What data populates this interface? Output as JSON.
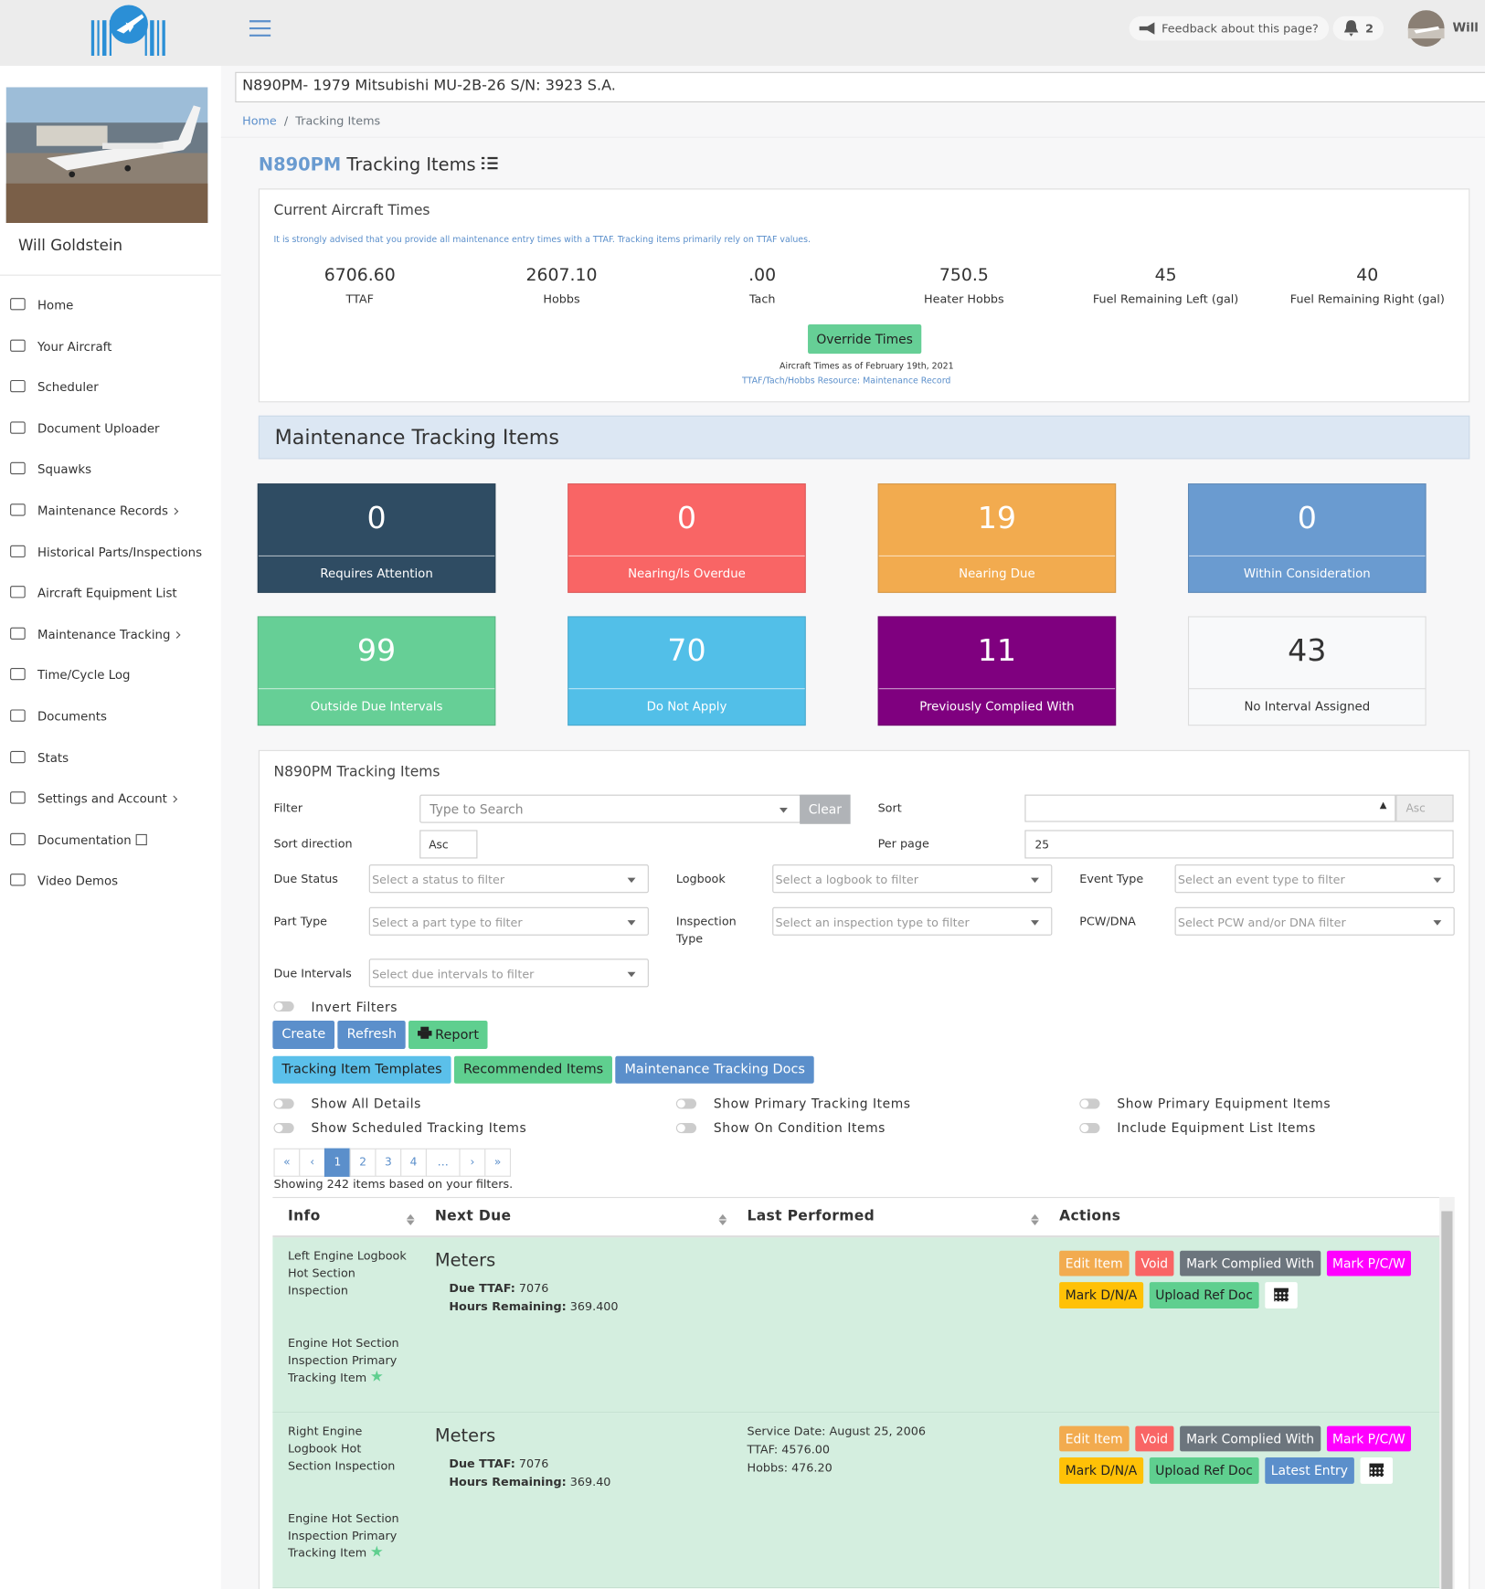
{
  "header": {
    "feedback": "Feedback about this page?",
    "notifications": "2",
    "user": "Will"
  },
  "aircraft_title": "N890PM- 1979 Mitsubishi MU-2B-26 S/N: 3923 S.A.",
  "breadcrumb": [
    "Home",
    "Tracking Items"
  ],
  "sidebar": {
    "user_name": "Will Goldstein",
    "menu": [
      "Home",
      "Your Aircraft",
      "Scheduler",
      "Document Uploader",
      "Squawks",
      "Maintenance Records",
      "Historical Parts/Inspections",
      "Aircraft Equipment List",
      "Maintenance Tracking",
      "Time/Cycle Log",
      "Documents",
      "Stats",
      "Settings and Account",
      "Documentation",
      "Video Demos"
    ]
  },
  "page_title": {
    "tail": "N890PM",
    "text": "Tracking Items"
  },
  "aircraft_times": {
    "title": "Current Aircraft Times",
    "advice": "It is strongly advised that you provide all maintenance entry times with a TTAF. Tracking items primarily rely on TTAF values.",
    "times": [
      {
        "value": "6706.60",
        "label": "TTAF"
      },
      {
        "value": "2607.10",
        "label": "Hobbs"
      },
      {
        "value": ".00",
        "label": "Tach"
      },
      {
        "value": "750.5",
        "label": "Heater Hobbs"
      },
      {
        "value": "45",
        "label": "Fuel Remaining Left (gal)"
      },
      {
        "value": "40",
        "label": "Fuel Remaining Right (gal)"
      }
    ],
    "button": "Override Times",
    "as_of": "Aircraft Times as of February 19th, 2021",
    "resource": "TTAF/Tach/Hobbs Resource: Maintenance Record"
  },
  "maintenance": {
    "title": "Maintenance Tracking Items",
    "cards": [
      {
        "count": 0,
        "label": "Requires Attention",
        "color": "#2f4c63"
      },
      {
        "count": 0,
        "label": "Nearing/Is Overdue",
        "color": "#f96565"
      },
      {
        "count": 19,
        "label": "Nearing Due",
        "color": "#f2ab4f"
      },
      {
        "count": 0,
        "label": "Within Consideration",
        "color": "#6a9bd0"
      },
      {
        "count": 99,
        "label": "Outside Due Intervals",
        "color": "#66cf96"
      },
      {
        "count": 70,
        "label": "Do Not Apply",
        "color": "#52bfe8"
      },
      {
        "count": 11,
        "label": "Previously Complied With",
        "color": "#7f007f"
      },
      {
        "count": 43,
        "label": "No Interval Assigned",
        "color": "#f8f9fa"
      }
    ]
  },
  "tracking": {
    "title": "N890PM Tracking Items",
    "filter_label": "Filter",
    "filter_placeholder": "Type to Search",
    "clear": "Clear",
    "sort_label": "Sort",
    "sort_order": "Asc",
    "sort_direction_label": "Sort direction",
    "sort_direction": "Asc",
    "per_page_label": "Per page",
    "per_page": "25",
    "selects": [
      {
        "label": "Due Status",
        "placeholder": "Select a status to filter"
      },
      {
        "label": "Logbook",
        "placeholder": "Select a logbook to filter"
      },
      {
        "label": "Event Type",
        "placeholder": "Select an event type to filter"
      },
      {
        "label": "Part Type",
        "placeholder": "Select a part type to filter"
      },
      {
        "label": "Inspection Type",
        "placeholder": "Select an inspection type to filter"
      },
      {
        "label": "PCW/DNA",
        "placeholder": "Select PCW and/or DNA filter"
      },
      {
        "label": "Due Intervals",
        "placeholder": "Select due intervals to filter"
      }
    ],
    "invert": "Invert Filters",
    "buttons": [
      {
        "text": "Create",
        "color": "#5b8fcb"
      },
      {
        "text": "Refresh",
        "color": "#5b8fcb"
      },
      {
        "text": "Report",
        "color": "#5fcf8f"
      }
    ],
    "links": [
      {
        "text": "Tracking Item Templates",
        "color": "#5bc0ea"
      },
      {
        "text": "Recommended Items",
        "color": "#5fcf8f"
      },
      {
        "text": "Maintenance Tracking Docs",
        "color": "#5b8fcb"
      }
    ],
    "toggles": [
      "Show All Details",
      "Show Scheduled Tracking Items",
      "Show Primary Tracking Items",
      "Show On Condition Items",
      "Show Primary Equipment Items",
      "Include Equipment List Items"
    ],
    "pagination": [
      "«",
      "‹",
      "1",
      "2",
      "3",
      "4",
      "…",
      "›",
      "»"
    ],
    "showing": "Showing 242 items based on your filters.",
    "columns": [
      "Info",
      "Next Due",
      "Last Performed",
      "Actions"
    ],
    "rows": [
      {
        "info": [
          "Left Engine Logbook Hot Section Inspection",
          "Engine Hot Section Inspection Primary Tracking Item"
        ],
        "next_due": {
          "title": "Meters",
          "due_ttaf_label": "Due TTAF:",
          "due_ttaf": "7076",
          "hours_label": "Hours Remaining:",
          "hours": "369.400"
        },
        "last_performed": [],
        "actions": [
          {
            "text": "Edit Item",
            "color": "#f2ab4f"
          },
          {
            "text": "Void",
            "color": "#f96565"
          },
          {
            "text": "Mark Complied With",
            "color": "#6c757d"
          },
          {
            "text": "Mark P/C/W",
            "color": "#ff00ff"
          },
          {
            "text": "Mark D/N/A",
            "color": "#ffc107"
          },
          {
            "text": "Upload Ref Doc",
            "color": "#5fcf8f"
          }
        ]
      },
      {
        "info": [
          "Right Engine Logbook Hot Section Inspection",
          "Engine Hot Section Inspection Primary Tracking Item"
        ],
        "next_due": {
          "title": "Meters",
          "due_ttaf_label": "Due TTAF:",
          "due_ttaf": "7076",
          "hours_label": "Hours Remaining:",
          "hours": "369.40"
        },
        "last_performed": [
          "Service Date: August 25, 2006",
          "TTAF: 4576.00",
          "Hobbs: 476.20"
        ],
        "actions": [
          {
            "text": "Edit Item",
            "color": "#f2ab4f"
          },
          {
            "text": "Void",
            "color": "#f96565"
          },
          {
            "text": "Mark Complied With",
            "color": "#6c757d"
          },
          {
            "text": "Mark P/C/W",
            "color": "#ff00ff"
          },
          {
            "text": "Mark D/N/A",
            "color": "#ffc107"
          },
          {
            "text": "Upload Ref Doc",
            "color": "#5fcf8f"
          },
          {
            "text": "Latest Entry",
            "color": "#5b8fcb"
          }
        ]
      }
    ]
  }
}
